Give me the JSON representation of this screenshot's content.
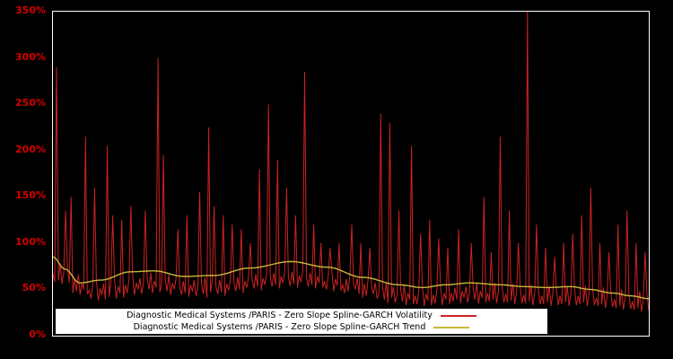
{
  "colors": {
    "background": "#000000",
    "plot_border": "#ffffff",
    "tick_label": "#d40000",
    "volatility": "#cc2222",
    "trend": "#c6b83a",
    "legend_bg": "#ffffff",
    "legend_text": "#000000"
  },
  "chart_data": {
    "type": "line",
    "title": "",
    "xlabel": "",
    "ylabel": "",
    "ylim": [
      0,
      350
    ],
    "y_unit": "%",
    "grid": false,
    "legend_position": "bottom-center",
    "yticks": [
      "350%",
      "300%",
      "250%",
      "200%",
      "150%",
      "100%",
      "50%",
      "0%"
    ],
    "series": [
      {
        "name": "Diagnostic Medical Systems /PARIS - Zero Slope Spline-GARCH Volatility",
        "color": "#cc2222",
        "values": [
          67,
          58,
          290,
          60,
          78,
          56,
          69,
          135,
          74,
          57,
          150,
          46,
          61,
          48,
          66,
          44,
          57,
          50,
          215,
          45,
          49,
          40,
          55,
          160,
          60,
          38,
          51,
          44,
          56,
          39,
          205,
          42,
          57,
          130,
          62,
          40,
          53,
          46,
          125,
          41,
          55,
          46,
          61,
          140,
          66,
          44,
          57,
          50,
          62,
          45,
          57,
          135,
          63,
          50,
          68,
          46,
          59,
          52,
          300,
          47,
          55,
          195,
          61,
          48,
          66,
          44,
          57,
          50,
          62,
          115,
          53,
          44,
          59,
          46,
          130,
          42,
          55,
          48,
          60,
          43,
          52,
          155,
          58,
          45,
          63,
          41,
          225,
          47,
          59,
          140,
          54,
          45,
          60,
          47,
          130,
          43,
          56,
          49,
          61,
          120,
          57,
          48,
          63,
          50,
          115,
          46,
          59,
          52,
          64,
          100,
          60,
          51,
          66,
          53,
          180,
          49,
          62,
          55,
          67,
          250,
          62,
          53,
          68,
          55,
          190,
          51,
          64,
          57,
          69,
          160,
          63,
          54,
          69,
          56,
          130,
          52,
          65,
          58,
          70,
          285,
          62,
          53,
          68,
          55,
          120,
          51,
          64,
          57,
          100,
          52,
          59,
          50,
          65,
          95,
          70,
          48,
          61,
          54,
          100,
          49,
          55,
          46,
          61,
          48,
          66,
          120,
          57,
          50,
          62,
          45,
          100,
          41,
          56,
          43,
          61,
          95,
          52,
          45,
          57,
          40,
          46,
          240,
          52,
          39,
          57,
          35,
          230,
          41,
          53,
          36,
          44,
          135,
          50,
          37,
          55,
          33,
          46,
          39,
          205,
          34,
          43,
          34,
          49,
          110,
          54,
          32,
          45,
          38,
          125,
          33,
          44,
          35,
          50,
          105,
          55,
          33,
          46,
          39,
          95,
          34,
          46,
          37,
          52,
          39,
          115,
          35,
          48,
          41,
          53,
          36,
          46,
          100,
          52,
          39,
          57,
          35,
          48,
          41,
          150,
          36,
          46,
          37,
          90,
          39,
          57,
          35,
          48,
          215,
          53,
          36,
          45,
          36,
          135,
          38,
          56,
          34,
          47,
          100,
          52,
          35,
          44,
          35,
          350,
          37,
          55,
          33,
          46,
          120,
          51,
          34,
          43,
          34,
          95,
          36,
          54,
          32,
          45,
          85,
          50,
          33,
          43,
          34,
          100,
          36,
          54,
          32,
          45,
          110,
          50,
          33,
          43,
          34,
          130,
          36,
          54,
          32,
          45,
          160,
          50,
          33,
          41,
          32,
          100,
          34,
          52,
          30,
          43,
          90,
          48,
          31,
          39,
          30,
          120,
          32,
          50,
          28,
          41,
          135,
          46,
          29,
          37,
          28,
          100,
          30,
          48,
          26,
          39,
          90,
          44,
          27
        ]
      },
      {
        "name": "Diagnostic Medical Systems /PARIS - Zero Slope Spline-GARCH Trend",
        "color": "#c6b83a",
        "control_points": [
          [
            0.0,
            85
          ],
          [
            0.02,
            72
          ],
          [
            0.045,
            57
          ],
          [
            0.08,
            60
          ],
          [
            0.13,
            69
          ],
          [
            0.17,
            70
          ],
          [
            0.22,
            64
          ],
          [
            0.27,
            65
          ],
          [
            0.33,
            73
          ],
          [
            0.4,
            80
          ],
          [
            0.46,
            74
          ],
          [
            0.52,
            63
          ],
          [
            0.58,
            55
          ],
          [
            0.62,
            52
          ],
          [
            0.66,
            55
          ],
          [
            0.7,
            57
          ],
          [
            0.75,
            55
          ],
          [
            0.79,
            53
          ],
          [
            0.83,
            52
          ],
          [
            0.87,
            53
          ],
          [
            0.9,
            50
          ],
          [
            0.94,
            46
          ],
          [
            0.97,
            43
          ],
          [
            1.0,
            40
          ]
        ]
      }
    ]
  }
}
